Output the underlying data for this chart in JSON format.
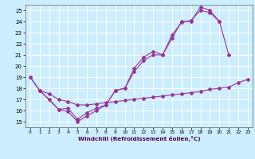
{
  "background_color": "#cceeff",
  "grid_color": "#ffffff",
  "line_color": "#993399",
  "xlabel": "Windchill (Refroidissement éolien,°C)",
  "xlim": [
    -0.5,
    23.5
  ],
  "ylim": [
    14.5,
    25.5
  ],
  "x_ticks": [
    0,
    1,
    2,
    3,
    4,
    5,
    6,
    7,
    8,
    9,
    10,
    11,
    12,
    13,
    14,
    15,
    16,
    17,
    18,
    19,
    20,
    21,
    22,
    23
  ],
  "y_ticks": [
    15,
    16,
    17,
    18,
    19,
    20,
    21,
    22,
    23,
    24,
    25
  ],
  "line_A_x": [
    0,
    1,
    2,
    3,
    4,
    5,
    6,
    7,
    8,
    9,
    10,
    11,
    12,
    13,
    14,
    15,
    16,
    17,
    18,
    19,
    20,
    21
  ],
  "line_A_y": [
    19,
    17.8,
    17.0,
    16.1,
    15.9,
    15.0,
    15.5,
    16.0,
    16.5,
    17.8,
    18.0,
    19.5,
    20.5,
    21.0,
    21.0,
    22.5,
    24.0,
    24.0,
    25.3,
    25.0,
    24.0,
    21.0
  ],
  "line_B_x": [
    0,
    1,
    3,
    4,
    5,
    6,
    7,
    8,
    9,
    10,
    11,
    12,
    13,
    14,
    15,
    16,
    17,
    18,
    19,
    20
  ],
  "line_B_y": [
    19,
    17.8,
    16.1,
    16.2,
    15.2,
    15.8,
    16.2,
    16.5,
    17.8,
    18.0,
    19.8,
    20.8,
    21.3,
    21.0,
    22.8,
    23.9,
    24.1,
    25.0,
    24.8,
    24.0
  ],
  "line_C_x": [
    1,
    2,
    3,
    4,
    5,
    6,
    7,
    8,
    9,
    10,
    11,
    12,
    13,
    14,
    15,
    16,
    17,
    18,
    19,
    20,
    21,
    22,
    23
  ],
  "line_C_y": [
    17.8,
    17.5,
    17.0,
    16.8,
    16.5,
    16.5,
    16.6,
    16.7,
    16.8,
    16.9,
    17.0,
    17.1,
    17.2,
    17.3,
    17.4,
    17.5,
    17.6,
    17.7,
    17.9,
    18.0,
    18.1,
    18.5,
    18.8
  ]
}
